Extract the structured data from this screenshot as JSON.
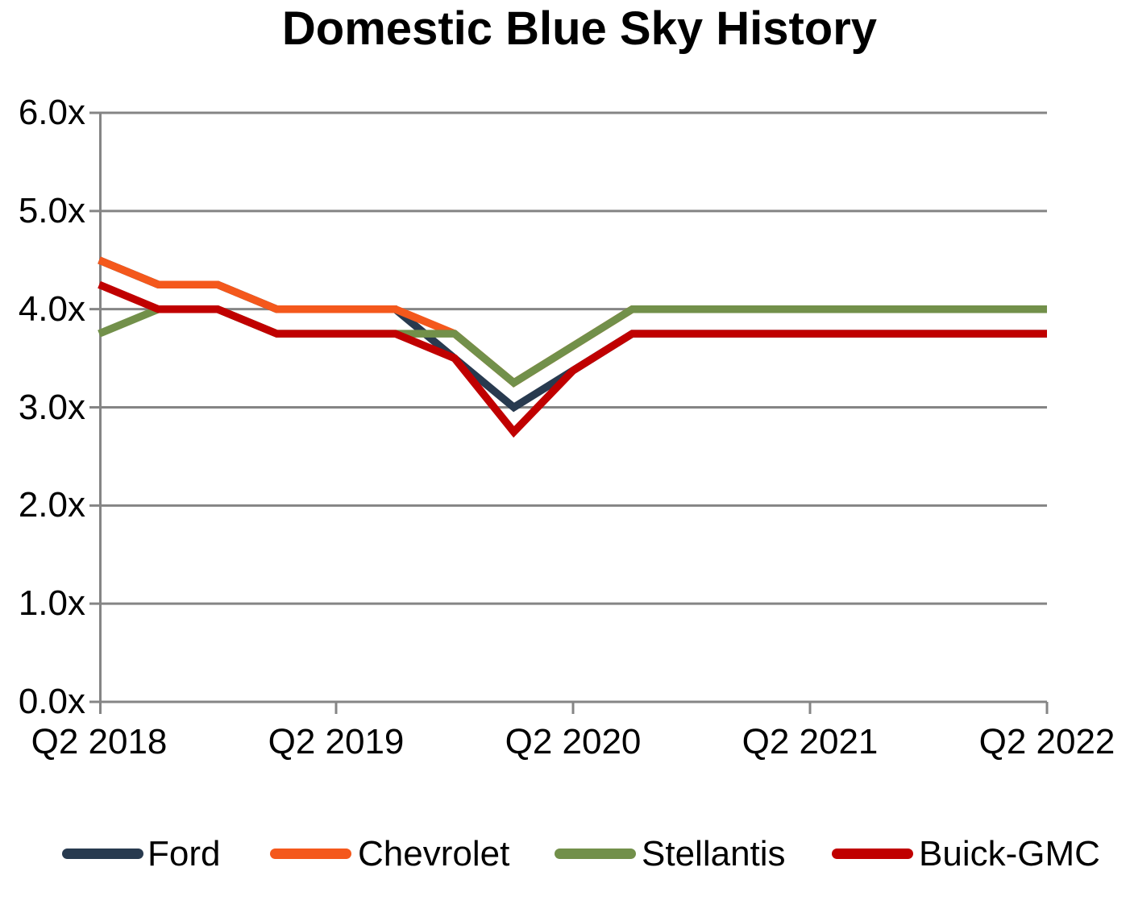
{
  "chart_data": {
    "type": "line",
    "title": "Domestic Blue Sky History",
    "x_tick_labels": [
      "Q2 2018",
      "Q2 2019",
      "Q2 2020",
      "Q2 2021",
      "Q2 2022"
    ],
    "x_categories": [
      "Q2 2018",
      "Q3 2018",
      "Q4 2018",
      "Q1 2019",
      "Q2 2019",
      "Q3 2019",
      "Q4 2019",
      "Q1 2020",
      "Q2 2020",
      "Q3 2020",
      "Q4 2020",
      "Q1 2021",
      "Q2 2021",
      "Q3 2021",
      "Q4 2021",
      "Q1 2022",
      "Q2 2022"
    ],
    "y_tick_labels": [
      "6.0x",
      "5.0x",
      "4.0x",
      "3.0x",
      "2.0x",
      "1.0x",
      "0.0x"
    ],
    "ylim": [
      0,
      6
    ],
    "y_unit": "x (multiple)",
    "grid": "horizontal",
    "legend_position": "bottom",
    "axis_color": "#858585",
    "background_color": "#ffffff",
    "series": [
      {
        "name": "Ford",
        "color": "#283A4F",
        "values": [
          4.5,
          4.25,
          4.25,
          4.0,
          4.0,
          4.0,
          3.5,
          3.0,
          3.375,
          3.75,
          3.75,
          3.75,
          3.75,
          3.75,
          3.75,
          3.75,
          3.75
        ]
      },
      {
        "name": "Chevrolet",
        "color": "#F4581C",
        "values": [
          4.5,
          4.25,
          4.25,
          4.0,
          4.0,
          4.0,
          3.75,
          3.25,
          3.625,
          4.0,
          4.0,
          4.0,
          4.0,
          4.0,
          4.0,
          4.0,
          4.0
        ]
      },
      {
        "name": "Stellantis",
        "color": "#72904A",
        "values": [
          3.75,
          4.0,
          4.0,
          3.75,
          3.75,
          3.75,
          3.75,
          3.25,
          3.625,
          4.0,
          4.0,
          4.0,
          4.0,
          4.0,
          4.0,
          4.0,
          4.0
        ]
      },
      {
        "name": "Buick-GMC",
        "color": "#C00000",
        "values": [
          4.25,
          4.0,
          4.0,
          3.75,
          3.75,
          3.75,
          3.5,
          2.75,
          3.375,
          3.75,
          3.75,
          3.75,
          3.75,
          3.75,
          3.75,
          3.75,
          3.75
        ]
      }
    ]
  }
}
